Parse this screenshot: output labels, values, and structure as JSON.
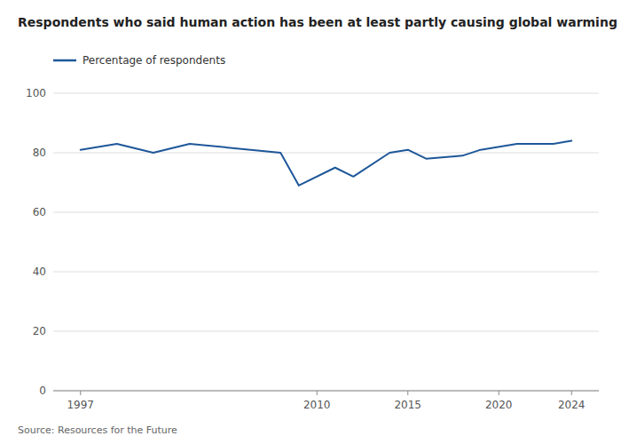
{
  "chart_data": {
    "type": "line",
    "title": "Respondents who said human action has been at least partly causing global warming",
    "source": "Source: Resources for the Future",
    "x": [
      1997,
      1999,
      2001,
      2003,
      2008,
      2009,
      2011,
      2012,
      2014,
      2015,
      2016,
      2018,
      2019,
      2021,
      2023,
      2024
    ],
    "series": [
      {
        "name": "Percentage of respondents",
        "color": "#1e5799",
        "values": [
          81,
          83,
          80,
          83,
          80,
          69,
          75,
          72,
          80,
          81,
          78,
          79,
          81,
          83,
          83,
          84
        ]
      }
    ],
    "xlim": [
      1995.5,
      2025.5
    ],
    "xticks": [
      1997,
      2010,
      2015,
      2020,
      2024
    ],
    "ylim": [
      0,
      100
    ],
    "yticks": [
      0,
      20,
      40,
      60,
      80,
      100
    ],
    "grid": true,
    "legend": "upper left"
  }
}
